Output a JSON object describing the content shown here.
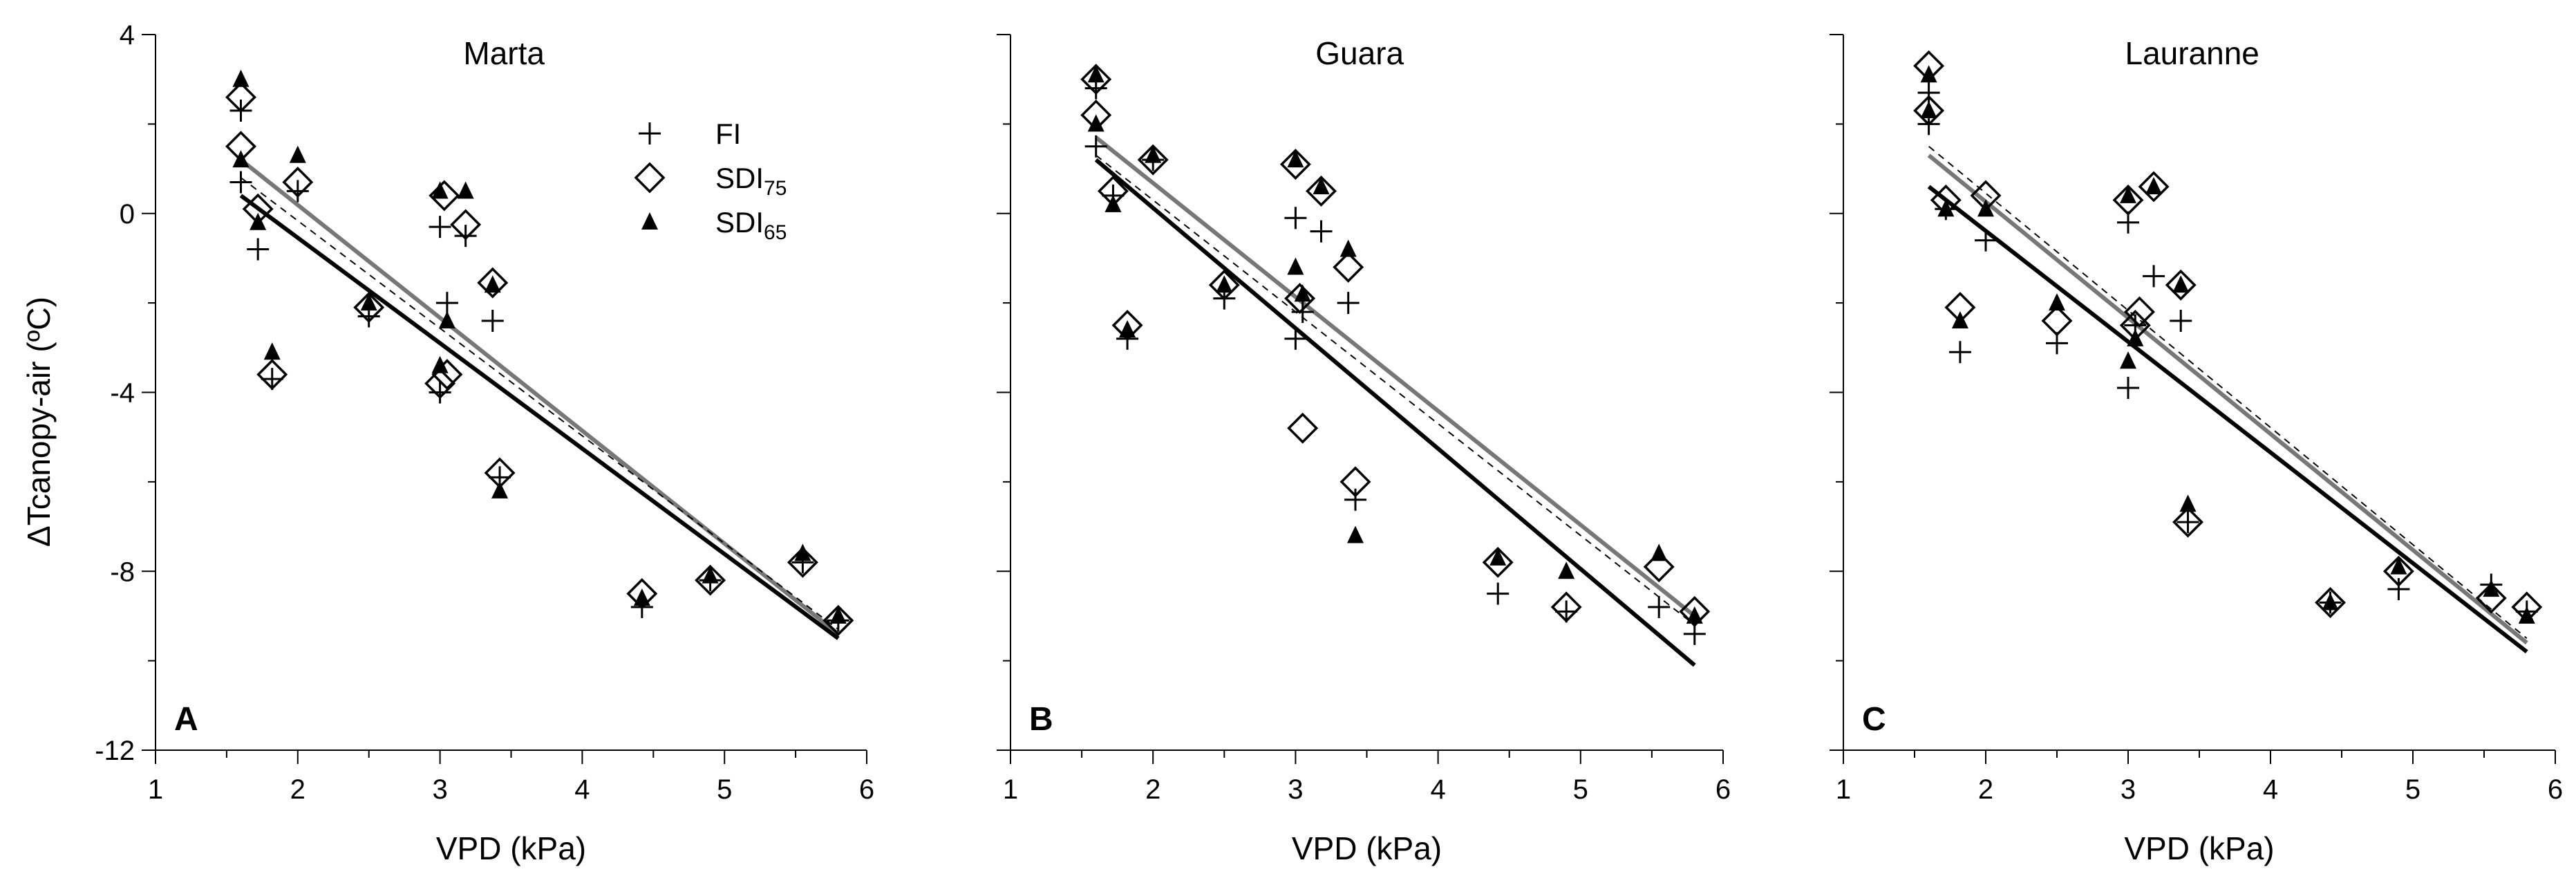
{
  "chart_data": {
    "type": "scatter",
    "layout": "three panels side by side",
    "ylabel_prefix": "ΔT",
    "ylabel_main": "canopy-air (ºC)",
    "xlabel": "VPD (kPa)",
    "xlim": [
      1,
      6
    ],
    "ylim": [
      -12,
      4
    ],
    "xticks": [
      "1",
      "2",
      "3",
      "4",
      "5",
      "6"
    ],
    "yticks": [
      "4",
      "0",
      "-4",
      "-8",
      "-12"
    ],
    "legend": {
      "placement": "top-center of panel A",
      "entries": [
        {
          "key": "FI",
          "main": "FI",
          "sub": "",
          "marker": "plus"
        },
        {
          "key": "SDI75",
          "main": "SDI",
          "sub": "75",
          "marker": "open-diamond"
        },
        {
          "key": "SDI65",
          "main": "SDI",
          "sub": "65",
          "marker": "filled-triangle"
        }
      ]
    },
    "line_styles": {
      "FI": {
        "color": "#000000",
        "dash": "10,8",
        "width": 2
      },
      "SDI75": {
        "color": "#777777",
        "dash": "",
        "width": 6
      },
      "SDI65": {
        "color": "#000000",
        "dash": "",
        "width": 6
      }
    },
    "panels": [
      {
        "title": "Marta",
        "label": "A",
        "series": [
          {
            "name": "FI",
            "points": [
              [
                1.6,
                2.3
              ],
              [
                1.6,
                0.7
              ],
              [
                1.72,
                -0.8
              ],
              [
                1.82,
                -3.7
              ],
              [
                2.0,
                0.5
              ],
              [
                2.5,
                -2.3
              ],
              [
                3.0,
                -4.0
              ],
              [
                3.0,
                -0.3
              ],
              [
                3.05,
                -2.0
              ],
              [
                3.18,
                -0.5
              ],
              [
                3.37,
                -2.4
              ],
              [
                3.42,
                -5.9
              ],
              [
                4.42,
                -8.8
              ],
              [
                4.9,
                -8.2
              ],
              [
                5.55,
                -7.8
              ],
              [
                5.8,
                -9.1
              ]
            ],
            "fit": [
              [
                1.6,
                0.8
              ],
              [
                5.8,
                -9.3
              ]
            ]
          },
          {
            "name": "SDI75",
            "points": [
              [
                1.6,
                2.6
              ],
              [
                1.6,
                1.5
              ],
              [
                1.72,
                0.1
              ],
              [
                1.82,
                -3.6
              ],
              [
                2.0,
                0.7
              ],
              [
                2.5,
                -2.1
              ],
              [
                3.0,
                -3.8
              ],
              [
                3.03,
                0.4
              ],
              [
                3.05,
                -3.6
              ],
              [
                3.18,
                -0.25
              ],
              [
                3.37,
                -1.55
              ],
              [
                3.42,
                -5.8
              ],
              [
                4.42,
                -8.5
              ],
              [
                4.9,
                -8.2
              ],
              [
                5.55,
                -7.8
              ],
              [
                5.8,
                -9.1
              ]
            ],
            "fit": [
              [
                1.6,
                1.2
              ],
              [
                5.8,
                -9.4
              ]
            ]
          },
          {
            "name": "SDI65",
            "points": [
              [
                1.6,
                3.0
              ],
              [
                1.6,
                1.2
              ],
              [
                1.72,
                -0.2
              ],
              [
                1.82,
                -3.1
              ],
              [
                2.0,
                1.3
              ],
              [
                2.5,
                -2.0
              ],
              [
                3.0,
                -3.4
              ],
              [
                3.0,
                0.5
              ],
              [
                3.05,
                -2.4
              ],
              [
                3.18,
                0.5
              ],
              [
                3.37,
                -1.6
              ],
              [
                3.42,
                -6.2
              ],
              [
                4.42,
                -8.6
              ],
              [
                4.9,
                -8.1
              ],
              [
                5.55,
                -7.6
              ],
              [
                5.8,
                -9.0
              ]
            ],
            "fit": [
              [
                1.6,
                0.4
              ],
              [
                5.8,
                -9.5
              ]
            ]
          }
        ]
      },
      {
        "title": "Guara",
        "label": "B",
        "series": [
          {
            "name": "FI",
            "points": [
              [
                1.6,
                2.8
              ],
              [
                1.6,
                1.5
              ],
              [
                1.72,
                0.4
              ],
              [
                1.82,
                -2.8
              ],
              [
                2.0,
                1.2
              ],
              [
                2.5,
                -1.9
              ],
              [
                3.0,
                -2.8
              ],
              [
                3.0,
                -0.1
              ],
              [
                3.05,
                -2.2
              ],
              [
                3.18,
                -0.4
              ],
              [
                3.37,
                -2.0
              ],
              [
                3.42,
                -6.4
              ],
              [
                4.42,
                -8.5
              ],
              [
                4.9,
                -8.9
              ],
              [
                5.55,
                -8.8
              ],
              [
                5.8,
                -9.4
              ]
            ],
            "fit": [
              [
                1.6,
                1.3
              ],
              [
                5.8,
                -9.2
              ]
            ]
          },
          {
            "name": "SDI75",
            "points": [
              [
                1.6,
                3.0
              ],
              [
                1.6,
                2.2
              ],
              [
                1.72,
                0.5
              ],
              [
                1.82,
                -2.5
              ],
              [
                2.0,
                1.2
              ],
              [
                2.5,
                -1.6
              ],
              [
                3.0,
                1.1
              ],
              [
                3.03,
                -1.9
              ],
              [
                3.05,
                -4.8
              ],
              [
                3.18,
                0.5
              ],
              [
                3.37,
                -1.2
              ],
              [
                3.42,
                -6.0
              ],
              [
                4.42,
                -7.8
              ],
              [
                4.9,
                -8.8
              ],
              [
                5.55,
                -7.9
              ],
              [
                5.8,
                -8.9
              ]
            ],
            "fit": [
              [
                1.6,
                1.7
              ],
              [
                5.8,
                -9.0
              ]
            ]
          },
          {
            "name": "SDI65",
            "points": [
              [
                1.6,
                3.1
              ],
              [
                1.6,
                2.0
              ],
              [
                1.72,
                0.2
              ],
              [
                1.82,
                -2.6
              ],
              [
                2.0,
                1.3
              ],
              [
                2.5,
                -1.6
              ],
              [
                3.0,
                1.2
              ],
              [
                3.0,
                -1.2
              ],
              [
                3.05,
                -1.8
              ],
              [
                3.18,
                0.6
              ],
              [
                3.37,
                -0.8
              ],
              [
                3.42,
                -7.2
              ],
              [
                4.42,
                -7.7
              ],
              [
                4.9,
                -8.0
              ],
              [
                5.55,
                -7.6
              ],
              [
                5.8,
                -9.0
              ]
            ],
            "fit": [
              [
                1.6,
                1.2
              ],
              [
                5.8,
                -10.1
              ]
            ]
          }
        ]
      },
      {
        "title": "Lauranne",
        "label": "C",
        "series": [
          {
            "name": "FI",
            "points": [
              [
                1.6,
                2.7
              ],
              [
                1.6,
                2.0
              ],
              [
                1.72,
                0.1
              ],
              [
                1.82,
                -3.1
              ],
              [
                2.0,
                -0.6
              ],
              [
                2.5,
                -2.9
              ],
              [
                3.0,
                -3.9
              ],
              [
                3.0,
                -0.2
              ],
              [
                3.05,
                -2.5
              ],
              [
                3.18,
                -1.4
              ],
              [
                3.37,
                -2.4
              ],
              [
                3.42,
                -6.9
              ],
              [
                4.42,
                -8.7
              ],
              [
                4.9,
                -8.4
              ],
              [
                5.55,
                -8.3
              ],
              [
                5.8,
                -8.9
              ]
            ],
            "fit": [
              [
                1.6,
                1.5
              ],
              [
                5.8,
                -9.5
              ]
            ]
          },
          {
            "name": "SDI75",
            "points": [
              [
                1.6,
                3.3
              ],
              [
                1.6,
                2.3
              ],
              [
                1.72,
                0.3
              ],
              [
                1.82,
                -2.1
              ],
              [
                2.0,
                0.4
              ],
              [
                2.5,
                -2.4
              ],
              [
                3.0,
                0.3
              ],
              [
                3.05,
                -2.5
              ],
              [
                3.08,
                -2.2
              ],
              [
                3.18,
                0.6
              ],
              [
                3.37,
                -1.6
              ],
              [
                3.42,
                -6.9
              ],
              [
                4.42,
                -8.7
              ],
              [
                4.9,
                -8.0
              ],
              [
                5.55,
                -8.6
              ],
              [
                5.8,
                -8.8
              ]
            ],
            "fit": [
              [
                1.6,
                1.3
              ],
              [
                5.8,
                -9.6
              ]
            ]
          },
          {
            "name": "SDI65",
            "points": [
              [
                1.6,
                3.1
              ],
              [
                1.6,
                2.3
              ],
              [
                1.72,
                0.1
              ],
              [
                1.82,
                -2.4
              ],
              [
                2.0,
                0.1
              ],
              [
                2.5,
                -2.0
              ],
              [
                3.0,
                -3.3
              ],
              [
                3.0,
                0.4
              ],
              [
                3.05,
                -2.8
              ],
              [
                3.18,
                0.6
              ],
              [
                3.37,
                -1.6
              ],
              [
                3.42,
                -6.5
              ],
              [
                4.42,
                -8.7
              ],
              [
                4.9,
                -7.9
              ],
              [
                5.55,
                -8.4
              ],
              [
                5.8,
                -9.0
              ]
            ],
            "fit": [
              [
                1.6,
                0.6
              ],
              [
                5.8,
                -9.8
              ]
            ]
          }
        ]
      }
    ]
  }
}
